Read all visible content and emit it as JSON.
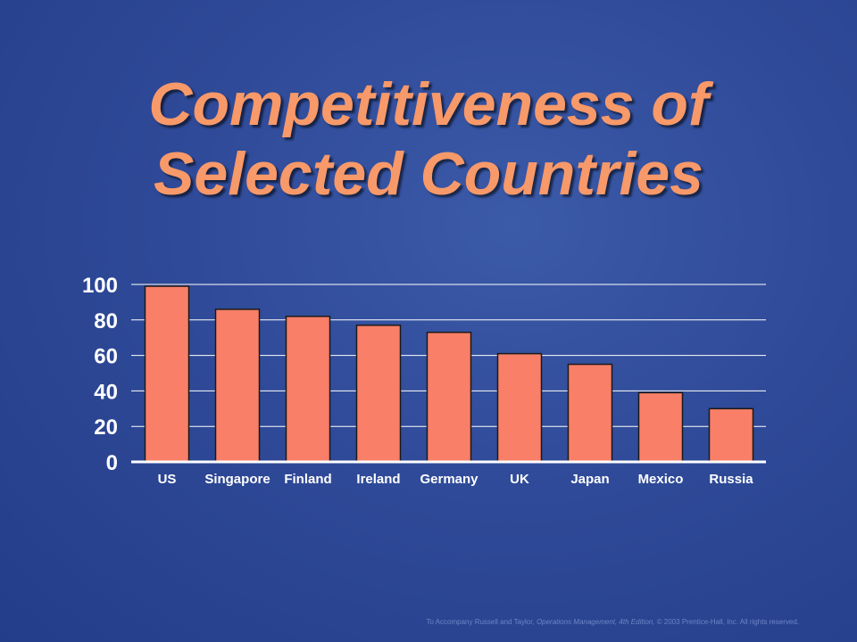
{
  "title": {
    "line1": "Competitiveness of",
    "line2": "Selected Countries"
  },
  "colors": {
    "title": "#f8996a",
    "bar_fill": "#f97f68",
    "bar_stroke": "#1a1a1a",
    "axis_text": "#ffffff",
    "gridline": "#ffffff",
    "background": "#2f4a98"
  },
  "chart_data": {
    "type": "bar",
    "categories": [
      "US",
      "Singapore",
      "Finland",
      "Ireland",
      "Germany",
      "UK",
      "Japan",
      "Mexico",
      "Russia"
    ],
    "values": [
      99,
      86,
      82,
      77,
      73,
      61,
      55,
      39,
      30
    ],
    "title": "",
    "xlabel": "",
    "ylabel": "",
    "ylim": [
      0,
      100
    ],
    "yticks": [
      "0",
      "20",
      "40",
      "60",
      "80",
      "100"
    ],
    "grid": true,
    "legend": "none"
  },
  "footer": {
    "prefix": "To Accompany Russell and Taylor, ",
    "book": "Operations Management, 4th Edition,",
    "copyright": " © 2003 Prentice-Hall, Inc. All rights reserved."
  }
}
